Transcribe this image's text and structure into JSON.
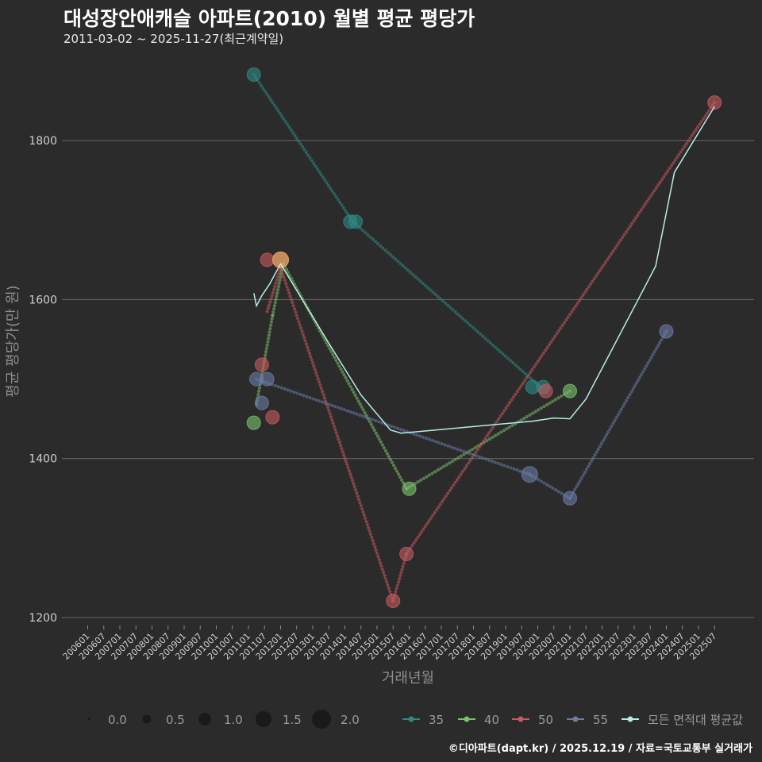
{
  "header": {
    "title": "대성장안애캐슬 아파트(2010) 월별 평균 평당가",
    "subtitle": "2011-03-02 ~ 2025-11-27(최근계약일)"
  },
  "footer": {
    "credit": "©디아파트(dapt.kr) / 2025.12.19 / 자료=국토교통부 실거래가"
  },
  "colors": {
    "background": "#2b2b2b",
    "grid": "#6a6a6a",
    "s35": "#2e8b84",
    "s40": "#7cc16a",
    "s50": "#c75a5f",
    "s55": "#6b7ca6",
    "avg": "#b8ece6",
    "highlight": "#e0a060"
  },
  "chart_data": {
    "type": "scatter",
    "title": "대성장안애캐슬 아파트(2010) 월별 평균 평당가",
    "xlabel": "거래년월",
    "ylabel": "평균 평당가(만 원)",
    "ylim": [
      1190,
      1905
    ],
    "yticks": [
      1200,
      1400,
      1600,
      1800
    ],
    "xticks": [
      "200601",
      "200607",
      "200701",
      "200707",
      "200801",
      "200807",
      "200901",
      "200907",
      "201001",
      "201007",
      "201101",
      "201107",
      "201201",
      "201207",
      "201301",
      "201307",
      "201401",
      "201407",
      "201501",
      "201507",
      "201601",
      "201607",
      "201701",
      "201707",
      "201801",
      "201807",
      "201901",
      "201907",
      "202001",
      "202007",
      "202101",
      "202107",
      "202201",
      "202207",
      "202301",
      "202307",
      "202401",
      "202407",
      "202501",
      "202507"
    ],
    "size_legend": {
      "title": "",
      "labels": [
        "0.0",
        "0.5",
        "1.0",
        "1.5",
        "2.0"
      ]
    },
    "series": [
      {
        "name": "35",
        "points": [
          {
            "t": "2011-03",
            "y": 1883,
            "size": 0.9
          },
          {
            "t": "2014-03",
            "y": 1698,
            "size": 0.9
          },
          {
            "t": "2014-05",
            "y": 1698,
            "size": 0.9
          },
          {
            "t": "2019-11",
            "y": 1490,
            "size": 0.9
          },
          {
            "t": "2020-03",
            "y": 1490,
            "size": 0.9
          }
        ],
        "trend": [
          [
            "2011-03",
            1883
          ],
          [
            "2014-04",
            1698
          ],
          [
            "2020-02",
            1490
          ]
        ]
      },
      {
        "name": "40",
        "points": [
          {
            "t": "2011-03",
            "y": 1445,
            "size": 0.9
          },
          {
            "t": "2012-01",
            "y": 1650,
            "size": 1.2
          },
          {
            "t": "2016-01",
            "y": 1362,
            "size": 0.9
          },
          {
            "t": "2021-01",
            "y": 1485,
            "size": 0.9
          }
        ],
        "trend": [
          [
            "2011-04",
            1468
          ],
          [
            "2011-10",
            1580
          ],
          [
            "2012-02",
            1645
          ],
          [
            "2015-12",
            1362
          ],
          [
            "2021-01",
            1485
          ]
        ]
      },
      {
        "name": "50",
        "points": [
          {
            "t": "2011-06",
            "y": 1518,
            "size": 0.9
          },
          {
            "t": "2011-08",
            "y": 1650,
            "size": 0.9
          },
          {
            "t": "2011-10",
            "y": 1452,
            "size": 0.9
          },
          {
            "t": "2012-01",
            "y": 1650,
            "size": 1.2
          },
          {
            "t": "2015-07",
            "y": 1221,
            "size": 0.9
          },
          {
            "t": "2015-12",
            "y": 1280,
            "size": 0.9
          },
          {
            "t": "2020-04",
            "y": 1485,
            "size": 0.9
          },
          {
            "t": "2025-07",
            "y": 1848,
            "size": 0.9
          }
        ],
        "trend": [
          [
            "2011-08",
            1585
          ],
          [
            "2012-01",
            1640
          ],
          [
            "2015-07",
            1221
          ],
          [
            "2015-12",
            1280
          ],
          [
            "2025-07",
            1848
          ]
        ]
      },
      {
        "name": "55",
        "points": [
          {
            "t": "2011-04",
            "y": 1500,
            "size": 0.9
          },
          {
            "t": "2011-06",
            "y": 1470,
            "size": 0.9
          },
          {
            "t": "2011-08",
            "y": 1500,
            "size": 0.9
          },
          {
            "t": "2019-10",
            "y": 1380,
            "size": 1.2
          },
          {
            "t": "2021-01",
            "y": 1350,
            "size": 0.9
          },
          {
            "t": "2024-01",
            "y": 1560,
            "size": 0.9
          }
        ],
        "trend": [
          [
            "2011-04",
            1500
          ],
          [
            "2019-10",
            1380
          ],
          [
            "2021-01",
            1350
          ],
          [
            "2024-01",
            1560
          ]
        ]
      },
      {
        "name": "모든 면적대 평균값",
        "line": [
          [
            "2011-03",
            1608
          ],
          [
            "2011-04",
            1592
          ],
          [
            "2011-06",
            1605
          ],
          [
            "2011-09",
            1620
          ],
          [
            "2012-01",
            1645
          ],
          [
            "2013-07",
            1545
          ],
          [
            "2014-07",
            1480
          ],
          [
            "2015-06",
            1436
          ],
          [
            "2015-10",
            1432
          ],
          [
            "2019-11",
            1447
          ],
          [
            "2020-07",
            1451
          ],
          [
            "2021-01",
            1450
          ],
          [
            "2021-07",
            1475
          ],
          [
            "2023-09",
            1642
          ],
          [
            "2024-04",
            1760
          ],
          [
            "2025-07",
            1843
          ]
        ]
      }
    ]
  }
}
